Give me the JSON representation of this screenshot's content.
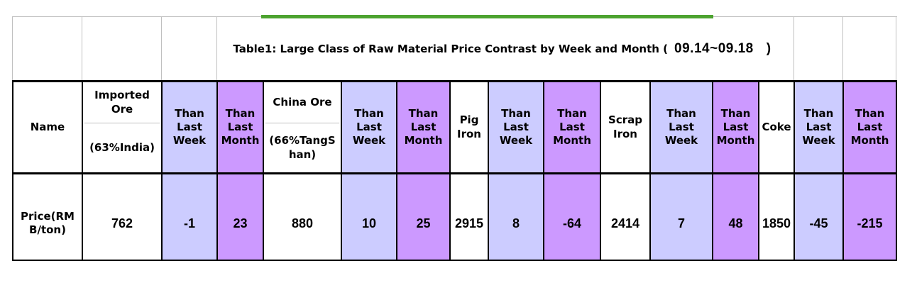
{
  "title": {
    "prefix": "Table1: Large Class of Raw Material Price Contrast by Week and Month (",
    "date": "09.14~09.18",
    "suffix": ")"
  },
  "colors": {
    "background": "#FFFFFF",
    "text": "#000000",
    "grid_line": "#C0C0C0",
    "table_border": "#000000",
    "than_week_fill": "#CCCCFF",
    "than_month_fill": "#CC99FF",
    "green_line": "#4CA32F"
  },
  "table": {
    "columns": [
      {
        "header": "Name",
        "value": "Price(RMB/ton)",
        "fill": "white"
      },
      {
        "header_top": "Imported Ore",
        "header_bottom": "(63%India)",
        "value": "762",
        "fill": "white"
      },
      {
        "header": "Than Last Week",
        "value": "-1",
        "fill": "week"
      },
      {
        "header": "Than Last Month",
        "value": "23",
        "fill": "month"
      },
      {
        "header_top": "China Ore",
        "header_bottom": "(66%TangShan)",
        "value": "880",
        "fill": "white"
      },
      {
        "header": "Than Last Week",
        "value": "10",
        "fill": "week"
      },
      {
        "header": "Than Last Month",
        "value": "25",
        "fill": "month"
      },
      {
        "header": "Pig Iron",
        "value": "2915",
        "fill": "white"
      },
      {
        "header": "Than Last Week",
        "value": "8",
        "fill": "week"
      },
      {
        "header": "Than Last Month",
        "value": "-64",
        "fill": "month"
      },
      {
        "header": "Scrap Iron",
        "value": "2414",
        "fill": "white"
      },
      {
        "header": "Than Last Week",
        "value": "7",
        "fill": "week"
      },
      {
        "header": "Than Last Month",
        "value": "48",
        "fill": "month"
      },
      {
        "header": "Coke",
        "value": "1850",
        "fill": "white"
      },
      {
        "header": "Than Last Week",
        "value": "-45",
        "fill": "week"
      },
      {
        "header": "Than Last Month",
        "value": "-215",
        "fill": "month"
      }
    ]
  },
  "chart_data": {
    "type": "table",
    "title": "Table1: Large Class of Raw Material Price Contrast by Week and Month ( 09.14~09.18 )",
    "row_label": "Price(RMB/ton)",
    "columns": [
      "Imported Ore (63%India)",
      "Than Last Week",
      "Than Last Month",
      "China Ore (66%TangShan)",
      "Than Last Week",
      "Than Last Month",
      "Pig Iron",
      "Than Last Week",
      "Than Last Month",
      "Scrap Iron",
      "Than Last Week",
      "Than Last Month",
      "Coke",
      "Than Last Week",
      "Than Last Month"
    ],
    "values": [
      762,
      -1,
      23,
      880,
      10,
      25,
      2915,
      8,
      -64,
      2414,
      7,
      48,
      1850,
      -45,
      -215
    ]
  }
}
